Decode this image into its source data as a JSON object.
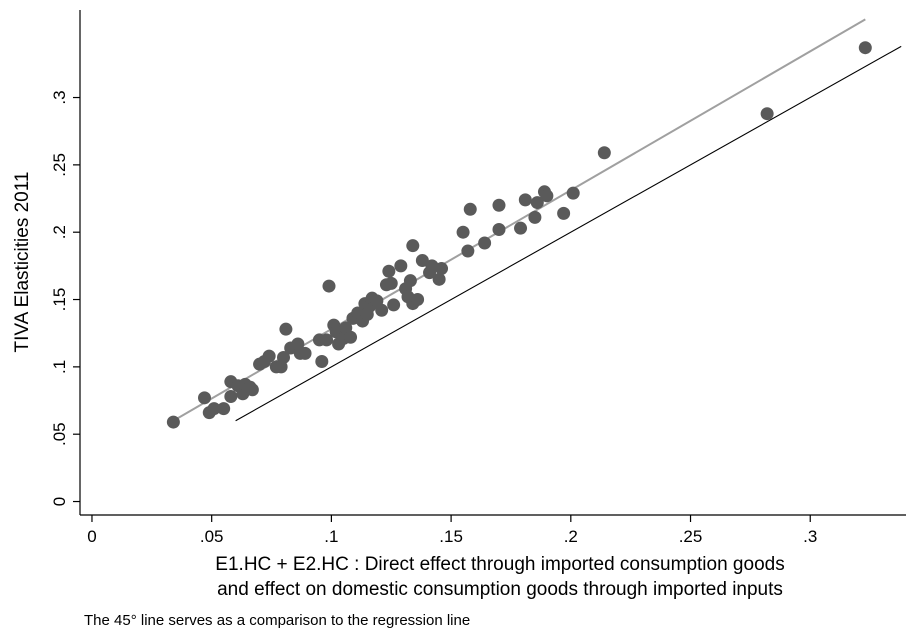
{
  "chart_data": {
    "type": "scatter",
    "ylabel": "TIVA Elasticities 2011",
    "xlabel_lines": [
      "E1.HC + E2.HC : Direct effect through imported consumption goods",
      "and effect on domestic consumption goods through imported inputs"
    ],
    "note": "The 45° line serves as a comparison to the regression line",
    "xlim": [
      -0.005,
      0.34
    ],
    "ylim": [
      -0.01,
      0.365
    ],
    "x_ticks": [
      {
        "value": 0,
        "label": "0"
      },
      {
        "value": 0.05,
        "label": ".05"
      },
      {
        "value": 0.1,
        "label": ".1"
      },
      {
        "value": 0.15,
        "label": ".15"
      },
      {
        "value": 0.2,
        "label": ".2"
      },
      {
        "value": 0.25,
        "label": ".25"
      },
      {
        "value": 0.3,
        "label": ".3"
      }
    ],
    "y_ticks": [
      {
        "value": 0,
        "label": "0"
      },
      {
        "value": 0.05,
        "label": ".05"
      },
      {
        "value": 0.1,
        "label": ".1"
      },
      {
        "value": 0.15,
        "label": ".15"
      },
      {
        "value": 0.2,
        "label": ".2"
      },
      {
        "value": 0.25,
        "label": ".25"
      },
      {
        "value": 0.3,
        "label": ".3"
      }
    ],
    "grid": false,
    "colors": {
      "points": "#5a5a5a",
      "regression_line": "#a0a0a0",
      "reference_line": "#000000"
    },
    "regression_line": {
      "x": [
        0.034,
        0.323
      ],
      "y": [
        0.06,
        0.358
      ]
    },
    "reference_line_45deg": {
      "x": [
        0.06,
        0.338
      ],
      "y": [
        0.06,
        0.338
      ]
    },
    "points": [
      {
        "x": 0.034,
        "y": 0.059
      },
      {
        "x": 0.047,
        "y": 0.077
      },
      {
        "x": 0.049,
        "y": 0.066
      },
      {
        "x": 0.051,
        "y": 0.069
      },
      {
        "x": 0.055,
        "y": 0.069
      },
      {
        "x": 0.058,
        "y": 0.089
      },
      {
        "x": 0.058,
        "y": 0.078
      },
      {
        "x": 0.061,
        "y": 0.086
      },
      {
        "x": 0.063,
        "y": 0.08
      },
      {
        "x": 0.064,
        "y": 0.087
      },
      {
        "x": 0.066,
        "y": 0.085
      },
      {
        "x": 0.067,
        "y": 0.083
      },
      {
        "x": 0.07,
        "y": 0.102
      },
      {
        "x": 0.072,
        "y": 0.104
      },
      {
        "x": 0.074,
        "y": 0.108
      },
      {
        "x": 0.077,
        "y": 0.1
      },
      {
        "x": 0.079,
        "y": 0.1
      },
      {
        "x": 0.08,
        "y": 0.107
      },
      {
        "x": 0.081,
        "y": 0.128
      },
      {
        "x": 0.083,
        "y": 0.114
      },
      {
        "x": 0.086,
        "y": 0.117
      },
      {
        "x": 0.087,
        "y": 0.11
      },
      {
        "x": 0.089,
        "y": 0.11
      },
      {
        "x": 0.095,
        "y": 0.12
      },
      {
        "x": 0.096,
        "y": 0.104
      },
      {
        "x": 0.098,
        "y": 0.12
      },
      {
        "x": 0.099,
        "y": 0.16
      },
      {
        "x": 0.101,
        "y": 0.131
      },
      {
        "x": 0.102,
        "y": 0.126
      },
      {
        "x": 0.103,
        "y": 0.117
      },
      {
        "x": 0.105,
        "y": 0.121
      },
      {
        "x": 0.106,
        "y": 0.129
      },
      {
        "x": 0.108,
        "y": 0.122
      },
      {
        "x": 0.109,
        "y": 0.136
      },
      {
        "x": 0.111,
        "y": 0.14
      },
      {
        "x": 0.113,
        "y": 0.134
      },
      {
        "x": 0.114,
        "y": 0.147
      },
      {
        "x": 0.115,
        "y": 0.139
      },
      {
        "x": 0.116,
        "y": 0.145
      },
      {
        "x": 0.117,
        "y": 0.151
      },
      {
        "x": 0.119,
        "y": 0.149
      },
      {
        "x": 0.121,
        "y": 0.142
      },
      {
        "x": 0.123,
        "y": 0.161
      },
      {
        "x": 0.124,
        "y": 0.171
      },
      {
        "x": 0.125,
        "y": 0.162
      },
      {
        "x": 0.126,
        "y": 0.146
      },
      {
        "x": 0.129,
        "y": 0.175
      },
      {
        "x": 0.131,
        "y": 0.158
      },
      {
        "x": 0.132,
        "y": 0.152
      },
      {
        "x": 0.133,
        "y": 0.164
      },
      {
        "x": 0.134,
        "y": 0.147
      },
      {
        "x": 0.134,
        "y": 0.19
      },
      {
        "x": 0.136,
        "y": 0.15
      },
      {
        "x": 0.138,
        "y": 0.179
      },
      {
        "x": 0.141,
        "y": 0.17
      },
      {
        "x": 0.142,
        "y": 0.175
      },
      {
        "x": 0.145,
        "y": 0.165
      },
      {
        "x": 0.146,
        "y": 0.173
      },
      {
        "x": 0.155,
        "y": 0.2
      },
      {
        "x": 0.157,
        "y": 0.186
      },
      {
        "x": 0.158,
        "y": 0.217
      },
      {
        "x": 0.164,
        "y": 0.192
      },
      {
        "x": 0.17,
        "y": 0.202
      },
      {
        "x": 0.17,
        "y": 0.22
      },
      {
        "x": 0.179,
        "y": 0.203
      },
      {
        "x": 0.181,
        "y": 0.224
      },
      {
        "x": 0.185,
        "y": 0.211
      },
      {
        "x": 0.186,
        "y": 0.222
      },
      {
        "x": 0.189,
        "y": 0.23
      },
      {
        "x": 0.19,
        "y": 0.227
      },
      {
        "x": 0.197,
        "y": 0.214
      },
      {
        "x": 0.201,
        "y": 0.229
      },
      {
        "x": 0.214,
        "y": 0.259
      },
      {
        "x": 0.282,
        "y": 0.288
      },
      {
        "x": 0.323,
        "y": 0.337
      }
    ]
  }
}
